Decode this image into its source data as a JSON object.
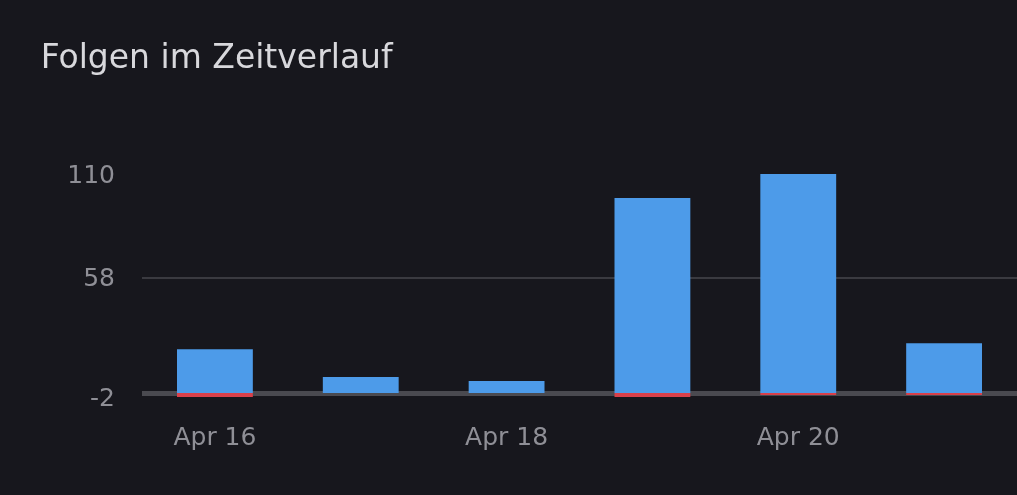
{
  "chart_data": {
    "type": "bar",
    "title": "Folgen im Zeitverlauf",
    "categories": [
      "Apr 16",
      null,
      "Apr 18",
      null,
      "Apr 20",
      null
    ],
    "series": [
      {
        "color": "#4d9be9",
        "values": [
          22,
          8,
          6,
          98,
          110,
          25
        ]
      },
      {
        "color": "#d9404a",
        "values": [
          -2,
          0,
          0,
          -2,
          -1,
          -1
        ]
      }
    ],
    "stacked": true,
    "ylim": [
      -2,
      110
    ],
    "yticks": [
      -2,
      58,
      110
    ],
    "grid": "y"
  }
}
